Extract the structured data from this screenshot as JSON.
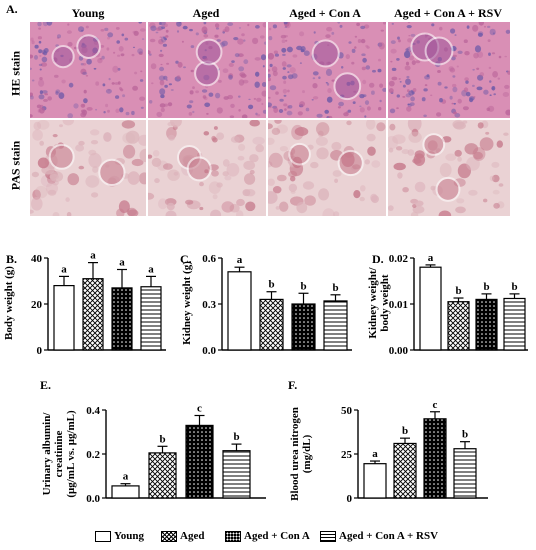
{
  "panels": {
    "A": "A.",
    "B": "B.",
    "C": "C.",
    "D": "D.",
    "E": "E.",
    "F": "F."
  },
  "groups": [
    "Young",
    "Aged",
    "Aged + Con A",
    "Aged + Con A + RSV"
  ],
  "legend_labels": [
    "Young",
    "Aged",
    "Aged + Con A",
    "Aged + Con A + RSV"
  ],
  "stain_rows": [
    "HE stain",
    "PAS stain"
  ],
  "colors": {
    "he_base": "#d98fb5",
    "he_dark": "#6f5aa8",
    "pas_base": "#ead2d4",
    "pas_dark": "#c67a8c",
    "bar_edge": "#000000"
  },
  "chart_data": [
    {
      "id": "B",
      "type": "bar",
      "categories": [
        "Young",
        "Aged",
        "Aged + Con A",
        "Aged + Con A + RSV"
      ],
      "values": [
        28,
        31,
        27,
        27.5
      ],
      "errors": [
        4,
        7,
        8,
        4.5
      ],
      "letters": [
        "a",
        "a",
        "a",
        "a"
      ],
      "ylabel": "Body weight (g)",
      "ylim": [
        0,
        40
      ],
      "yticks": [
        "0",
        "20",
        "40"
      ]
    },
    {
      "id": "C",
      "type": "bar",
      "categories": [
        "Young",
        "Aged",
        "Aged + Con A",
        "Aged + Con A + RSV"
      ],
      "values": [
        0.51,
        0.33,
        0.3,
        0.32
      ],
      "errors": [
        0.03,
        0.05,
        0.07,
        0.04
      ],
      "letters": [
        "a",
        "b",
        "b",
        "b"
      ],
      "ylabel": "Kidney weight (g)",
      "ylim": [
        0,
        0.6
      ],
      "yticks": [
        "0.0",
        "0.3",
        "0.6"
      ]
    },
    {
      "id": "D",
      "type": "bar",
      "categories": [
        "Young",
        "Aged",
        "Aged + Con A",
        "Aged + Con A + RSV"
      ],
      "values": [
        0.018,
        0.0105,
        0.011,
        0.0112
      ],
      "errors": [
        0.0005,
        0.0008,
        0.0012,
        0.001
      ],
      "letters": [
        "a",
        "b",
        "b",
        "b"
      ],
      "ylabel": [
        "Kidney weight/",
        "body weight"
      ],
      "ylim": [
        0,
        0.02
      ],
      "yticks": [
        "0.00",
        "0.01",
        "0.02"
      ]
    },
    {
      "id": "E",
      "type": "bar",
      "categories": [
        "Young",
        "Aged",
        "Aged + Con A",
        "Aged + Con A + RSV"
      ],
      "values": [
        0.055,
        0.205,
        0.33,
        0.215
      ],
      "errors": [
        0.01,
        0.03,
        0.045,
        0.03
      ],
      "letters": [
        "a",
        "b",
        "c",
        "b"
      ],
      "ylabel": [
        "Urinary albumin/",
        "creatinine",
        "(μg/mL vs. μg/mL)"
      ],
      "ylim": [
        0,
        0.4
      ],
      "yticks": [
        "0.0",
        "0.2",
        "0.4"
      ]
    },
    {
      "id": "F",
      "type": "bar",
      "categories": [
        "Young",
        "Aged",
        "Aged + Con A",
        "Aged + Con A + RSV"
      ],
      "values": [
        19.5,
        31,
        45,
        28
      ],
      "errors": [
        1.5,
        3,
        4,
        4
      ],
      "letters": [
        "a",
        "b",
        "c",
        "b"
      ],
      "ylabel": [
        "Blood urea nitrogen",
        "(mg/dL)"
      ],
      "ylim": [
        0,
        50
      ],
      "yticks": [
        "0",
        "25",
        "50"
      ]
    }
  ]
}
